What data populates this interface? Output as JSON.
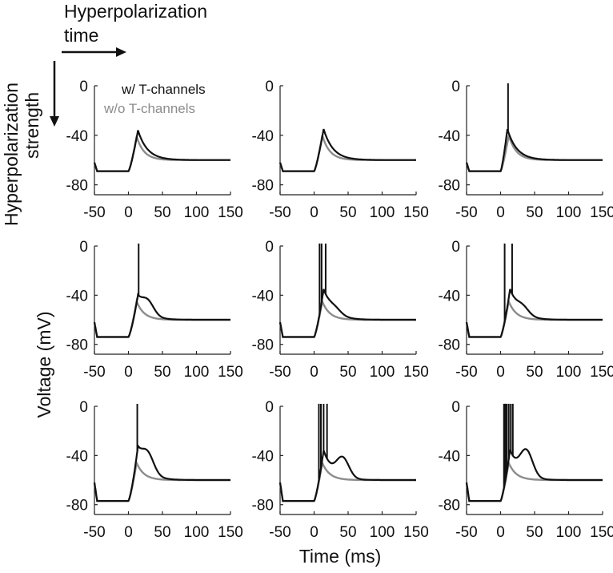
{
  "figure": {
    "time_axis_label": "Hyperpolarization",
    "time_axis_label_2": "time",
    "strength_axis_label": "Hyperpolarization",
    "strength_axis_label_2": "strength",
    "y_label": "Voltage (mV)",
    "x_label": "Time (ms)",
    "legend": [
      {
        "label": "w/  T-channels",
        "color": "#111111"
      },
      {
        "label": "w/o T-channels",
        "color": "#8c8c8c"
      }
    ],
    "colors": {
      "with_t": "#111111",
      "without_t": "#8c8c8c",
      "axis": "#222222"
    }
  },
  "chart_data": {
    "type": "line",
    "layout": "3x3 small multiples",
    "shared_axes": {
      "xlim": [
        -50,
        150
      ],
      "ylim": [
        -88,
        0
      ],
      "xticks": [
        -50,
        0,
        50,
        100,
        150
      ],
      "yticks": [
        0,
        -40,
        -80
      ],
      "xtick_labels": [
        "-50",
        "0",
        "50",
        "100",
        "150"
      ],
      "ytick_labels": [
        "0",
        "-40",
        "-80"
      ]
    },
    "panels": [
      {
        "rest": -69,
        "with_t": {
          "peak": -36,
          "peak_t": 14,
          "spikes": [],
          "hump": null
        },
        "without_t": {
          "peak": -41,
          "peak_t": 12
        }
      },
      {
        "rest": -69,
        "with_t": {
          "peak": -35,
          "peak_t": 14,
          "spikes": [],
          "hump": null
        },
        "without_t": {
          "peak": -40,
          "peak_t": 12
        }
      },
      {
        "rest": -69,
        "with_t": {
          "peak": -35,
          "peak_t": 10,
          "spikes": [
            11
          ],
          "hump": null
        },
        "without_t": {
          "peak": -40,
          "peak_t": 12
        }
      },
      {
        "rest": -74,
        "with_t": {
          "peak": -43,
          "peak_t": 14,
          "spikes": [
            15
          ],
          "hump": {
            "peak": -43,
            "t": 28
          }
        },
        "without_t": {
          "peak": -45,
          "peak_t": 12
        }
      },
      {
        "rest": -74,
        "with_t": {
          "peak": -36,
          "peak_t": 14,
          "spikes": [
            8,
            11,
            17
          ],
          "hump": {
            "peak": -48,
            "t": 30
          }
        },
        "without_t": {
          "peak": -45,
          "peak_t": 12
        }
      },
      {
        "rest": -74,
        "with_t": {
          "peak": -36,
          "peak_t": 14,
          "spikes": [
            6,
            17
          ],
          "hump": {
            "peak": -47,
            "t": 32
          }
        },
        "without_t": {
          "peak": -45,
          "peak_t": 12
        }
      },
      {
        "rest": -77,
        "with_t": {
          "peak": -37,
          "peak_t": 14,
          "spikes": [
            13
          ],
          "hump": {
            "peak": -36,
            "t": 28
          }
        },
        "without_t": {
          "peak": -46,
          "peak_t": 12
        }
      },
      {
        "rest": -77,
        "with_t": {
          "peak": -36,
          "peak_t": 14,
          "spikes": [
            7,
            10,
            14,
            19
          ],
          "hump": {
            "peak": -41,
            "t": 42
          }
        },
        "without_t": {
          "peak": -46,
          "peak_t": 12
        }
      },
      {
        "rest": -77,
        "with_t": {
          "peak": -36,
          "peak_t": 14,
          "spikes": [
            5,
            7,
            9,
            12,
            15,
            18
          ],
          "hump": {
            "peak": -35,
            "t": 38
          }
        },
        "without_t": {
          "peak": -46,
          "peak_t": 12
        }
      }
    ]
  }
}
